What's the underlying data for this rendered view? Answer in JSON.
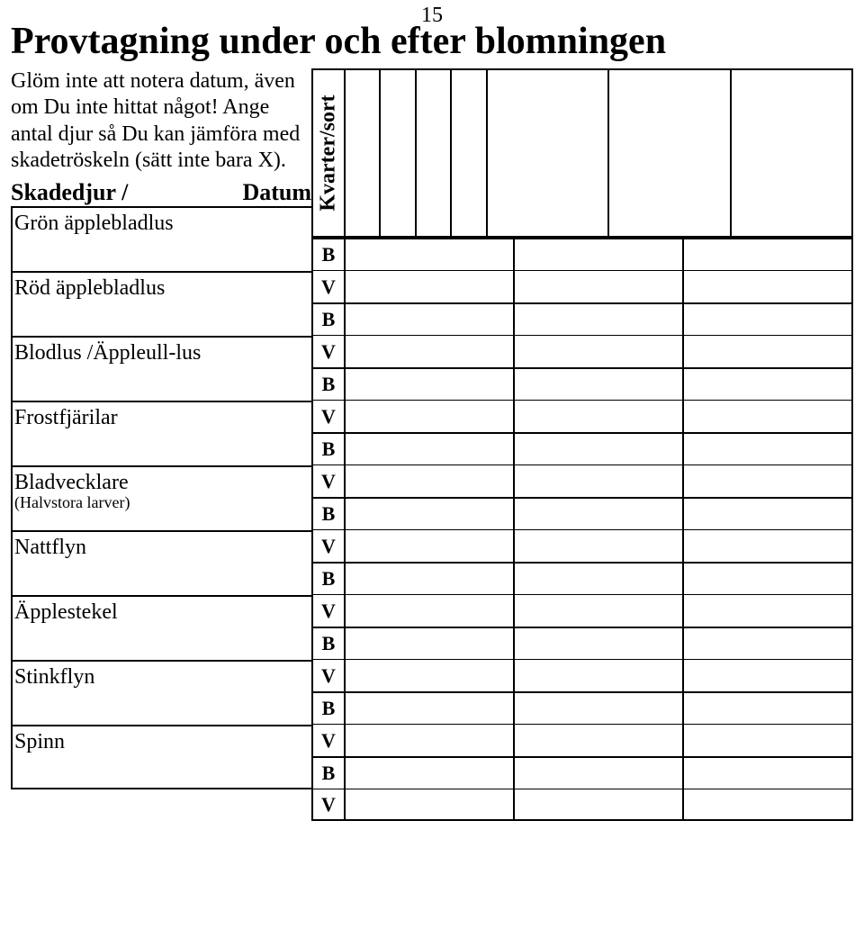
{
  "page_number": "15",
  "title": "Provtagning under och efter blomningen",
  "intro": "Glöm inte att notera datum, även om Du inte hittat något! Ange antal djur så Du kan jämföra med skadetröskeln (sätt inte bara X).",
  "rotated_header": "Kvarter/sort",
  "row_header_left": "Skadedjur  /",
  "row_header_right": "Datum",
  "bv_labels": {
    "b": "B",
    "v": "V"
  },
  "header_columns": {
    "narrow_count": 4,
    "wide_count": 3
  },
  "pests": [
    {
      "name": "Grön äpplebladlus",
      "sub": ""
    },
    {
      "name": "Röd äpplebladlus",
      "sub": ""
    },
    {
      "name": "Blodlus /Äppleull-lus",
      "sub": ""
    },
    {
      "name": "Frostfjärilar",
      "sub": ""
    },
    {
      "name": "Bladvecklare",
      "sub": "(Halvstora larver)"
    },
    {
      "name": "Nattflyn",
      "sub": ""
    },
    {
      "name": "Äpplestekel",
      "sub": ""
    },
    {
      "name": "Stinkflyn",
      "sub": ""
    },
    {
      "name": "Spinn",
      "sub": ""
    }
  ],
  "colors": {
    "text": "#000000",
    "background": "#ffffff",
    "border": "#000000"
  },
  "typography": {
    "title_fontsize_pt": 32,
    "body_fontsize_pt": 18,
    "family": "Times New Roman"
  }
}
